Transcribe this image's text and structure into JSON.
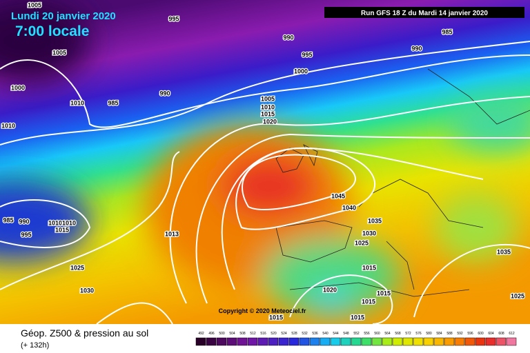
{
  "header": {
    "date": "Lundi 20 janvier 2020",
    "time": "7:00 locale",
    "run": "Run GFS 18 Z du Mardi 14 janvier 2020"
  },
  "isobar_labels": [
    1005,
    995,
    985,
    990,
    990,
    1005,
    995,
    1000,
    1000,
    990,
    1010,
    985,
    1005,
    1010,
    1015,
    1020,
    1010,
    1045,
    1040,
    985,
    990,
    1010,
    1010,
    1015,
    995,
    1035,
    1013,
    1030,
    1025,
    1035,
    1025,
    1015,
    1020,
    1015,
    1030,
    1015,
    1025,
    1015,
    1015
  ],
  "copyright": "Copyright © 2020 Meteociel.fr",
  "footer": {
    "product": "Géop. Z500 & pression au sol",
    "lead": "(+ 132h)"
  },
  "scale": [
    492,
    496,
    500,
    504,
    508,
    512,
    516,
    520,
    524,
    528,
    532,
    536,
    540,
    544,
    548,
    552,
    556,
    560,
    564,
    568,
    572,
    576,
    580,
    584,
    588,
    592,
    596,
    600,
    604,
    608,
    612
  ]
}
